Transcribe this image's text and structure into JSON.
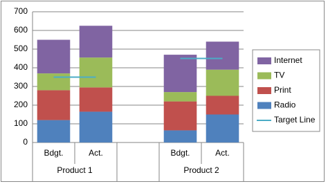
{
  "chart_data": {
    "type": "bar",
    "stacked": true,
    "categories": [
      "Bdgt.",
      "Act.",
      null,
      "Bdgt.",
      "Act."
    ],
    "group_labels": [
      "Product 1",
      "Product 2"
    ],
    "series": [
      {
        "name": "Radio",
        "color": "#4f81bd",
        "values": [
          120,
          165,
          null,
          65,
          150
        ]
      },
      {
        "name": "Print",
        "color": "#c0504d",
        "values": [
          160,
          130,
          null,
          155,
          100
        ]
      },
      {
        "name": "TV",
        "color": "#9bbb59",
        "values": [
          90,
          160,
          null,
          50,
          140
        ]
      },
      {
        "name": "Internet",
        "color": "#8064a2",
        "values": [
          180,
          170,
          null,
          200,
          150
        ]
      },
      {
        "name": "Target Line",
        "color": "#4bacc6",
        "type": "line",
        "values": [
          350,
          350,
          null,
          450,
          450
        ]
      }
    ],
    "ylim": [
      0,
      700
    ],
    "yticks": [
      0,
      100,
      200,
      300,
      400,
      500,
      600,
      700
    ],
    "grid": true,
    "legend": "right"
  }
}
